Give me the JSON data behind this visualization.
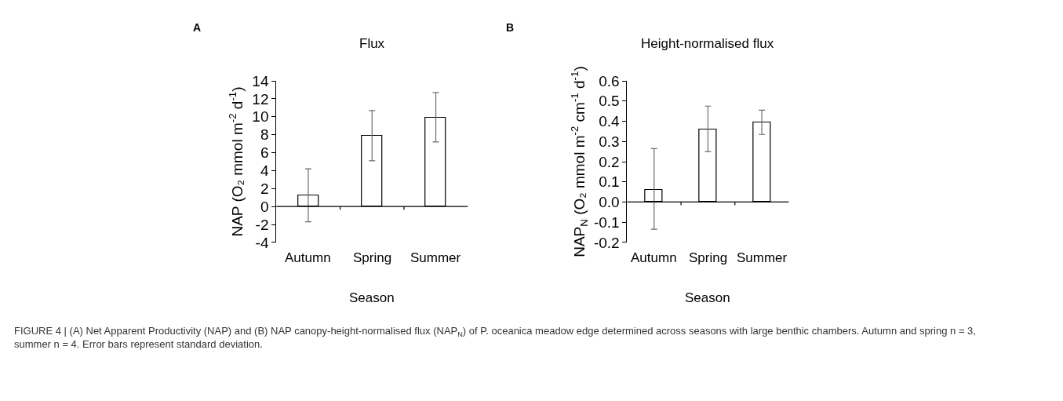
{
  "chart_data": [
    {
      "type": "bar",
      "title": "Flux",
      "xlabel": "Season",
      "ylabel": "NAP (O₂ mmol m$^{-2}$ d$^{-1}$)",
      "categories": [
        "Autumn",
        "Spring",
        "Summer"
      ],
      "values": [
        1.2,
        7.9,
        9.9
      ],
      "errors": [
        [
          -1.7,
          4.2
        ],
        [
          5.1,
          10.7
        ],
        [
          7.2,
          12.7
        ]
      ],
      "color": "#ffffff",
      "ylim": [
        -4,
        14
      ],
      "yticks": [
        -4,
        -2,
        0,
        2,
        4,
        6,
        8,
        10,
        12,
        14
      ],
      "annotations": [
        "A",
        "FIGURE 4 | (A) Net Apparent Productivity (NAP) and (B) NAP canopy-height-normalised flux (NAP$_{N}$) of P. oceanica meadow edge determined across seasons with large benthic chambers. Autumn and spring n = 3, summer n = 4. Error bars represent standard deviation."
      ]
    },
    {
      "type": "bar",
      "title": "Height-normalised flux",
      "xlabel": "Season",
      "ylabel": "NAP$_{N}$ (O₂ mmol m$^{-2}$ cm$^{-1}$ d$^{-1}$)",
      "categories": [
        "Autumn",
        "Spring",
        "Summer"
      ],
      "values": [
        0.06,
        0.36,
        0.395
      ],
      "errors": [
        [
          -0.135,
          0.265
        ],
        [
          0.25,
          0.475
        ],
        [
          0.335,
          0.455
        ]
      ],
      "color": "#ffffff",
      "ylim": [
        -0.2,
        0.6
      ],
      "yticks": [
        {
          "value": -0.2,
          "label": "-0.2"
        },
        {
          "value": -0.1,
          "label": "-0.1"
        },
        {
          "value": 0,
          "label": "0.0"
        },
        0.1,
        0.2,
        0.3,
        0.4,
        0.5,
        0.6
      ],
      "annotations": [
        "B"
      ]
    }
  ]
}
